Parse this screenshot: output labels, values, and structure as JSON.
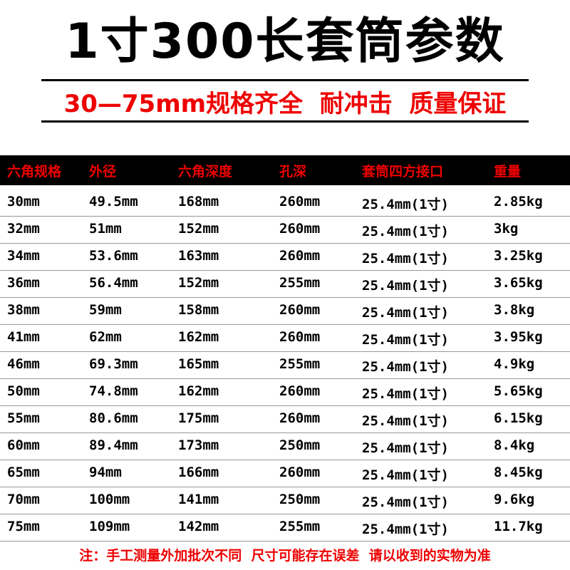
{
  "header": {
    "title": "1寸300长套筒参数",
    "subtitle": "30—75mm规格齐全  耐冲击  质量保证"
  },
  "table": {
    "columns": [
      "六角规格",
      "外径",
      "六角深度",
      "孔深",
      "套筒四方接口",
      "重量"
    ],
    "rows": [
      [
        "30mm",
        "49.5mm",
        "168mm",
        "260mm",
        "25.4mm(1寸)",
        "2.85kg"
      ],
      [
        "32mm",
        "51mm",
        "152mm",
        "260mm",
        "25.4mm(1寸)",
        "3kg"
      ],
      [
        "34mm",
        "53.6mm",
        "163mm",
        "260mm",
        "25.4mm(1寸)",
        "3.25kg"
      ],
      [
        "36mm",
        "56.4mm",
        "152mm",
        "255mm",
        "25.4mm(1寸)",
        "3.65kg"
      ],
      [
        "38mm",
        "59mm",
        "158mm",
        "260mm",
        "25.4mm(1寸)",
        "3.8kg"
      ],
      [
        "41mm",
        "62mm",
        "162mm",
        "260mm",
        "25.4mm(1寸)",
        "3.95kg"
      ],
      [
        "46mm",
        "69.3mm",
        "165mm",
        "255mm",
        "25.4mm(1寸)",
        "4.9kg"
      ],
      [
        "50mm",
        "74.8mm",
        "162mm",
        "260mm",
        "25.4mm(1寸)",
        "5.65kg"
      ],
      [
        "55mm",
        "80.6mm",
        "175mm",
        "260mm",
        "25.4mm(1寸)",
        "6.15kg"
      ],
      [
        "60mm",
        "89.4mm",
        "173mm",
        "250mm",
        "25.4mm(1寸)",
        "8.4kg"
      ],
      [
        "65mm",
        "94mm",
        "166mm",
        "260mm",
        "25.4mm(1寸)",
        "8.45kg"
      ],
      [
        "70mm",
        "100mm",
        "141mm",
        "250mm",
        "25.4mm(1寸)",
        "9.6kg"
      ],
      [
        "75mm",
        "109mm",
        "142mm",
        "255mm",
        "25.4mm(1寸)",
        "11.7kg"
      ]
    ]
  },
  "footer": "注：手工测量外加批次不同  尺寸可能存在误差  请以收到的实物为准"
}
